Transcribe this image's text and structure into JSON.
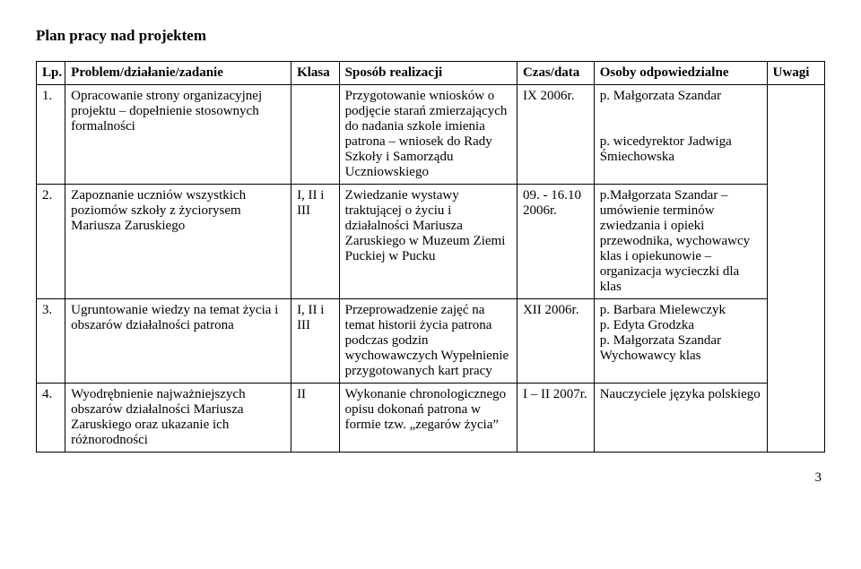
{
  "title": "Plan pracy nad projektem",
  "columns": {
    "lp": "Lp.",
    "problem": "Problem/działanie/zadanie",
    "klasa": "Klasa",
    "sposob": "Sposób realizacji",
    "czas": "Czas/data",
    "osoby": "Osoby odpowiedzialne",
    "uwagi": "Uwagi"
  },
  "rows": [
    {
      "lp": "1.",
      "problem": "Opracowanie strony organizacyjnej projektu – dopełnienie stosownych formalności",
      "klasa": "",
      "sposob": "Przygotowanie wniosków o podjęcie starań zmierzających do nadania szkole imienia patrona – wniosek do Rady Szkoły i Samorządu Uczniowskiego",
      "czas": "IX 2006r.",
      "osoby": "p. Małgorzata Szandar\n\np. wicedyrektor Jadwiga Śmiechowska",
      "uwagi": ""
    },
    {
      "lp": "2.",
      "problem": "Zapoznanie uczniów wszystkich poziomów szkoły z życiorysem Mariusza Zaruskiego",
      "klasa": "I, II i III",
      "sposob": "Zwiedzanie wystawy traktującej o życiu i działalności Mariusza Zaruskiego w Muzeum Ziemi Puckiej w Pucku",
      "czas": "09. - 16.10 2006r.",
      "osoby": "p.Małgorzata Szandar – umówienie terminów zwiedzania i opieki przewodnika, wychowawcy klas i opiekunowie – organizacja wycieczki dla klas",
      "uwagi": ""
    },
    {
      "lp": "3.",
      "problem": "Ugruntowanie wiedzy na temat życia i obszarów działalności patrona",
      "klasa": "I, II i III",
      "sposob": "Przeprowadzenie zajęć na temat historii życia patrona podczas godzin wychowawczych Wypełnienie przygotowanych kart pracy",
      "czas": "XII 2006r.",
      "osoby": "p. Barbara Mielewczyk\np. Edyta Grodzka\np. Małgorzata Szandar\nWychowawcy klas",
      "uwagi": ""
    },
    {
      "lp": "4.",
      "problem": "Wyodrębnienie najważniejszych obszarów działalności Mariusza Zaruskiego oraz ukazanie ich różnorodności",
      "klasa": "II",
      "sposob": "Wykonanie chronologicznego opisu dokonań patrona w formie tzw. „zegarów życia”",
      "czas": "I – II 2007r.",
      "osoby": "Nauczyciele języka polskiego",
      "uwagi": ""
    }
  ],
  "pageNumber": "3"
}
